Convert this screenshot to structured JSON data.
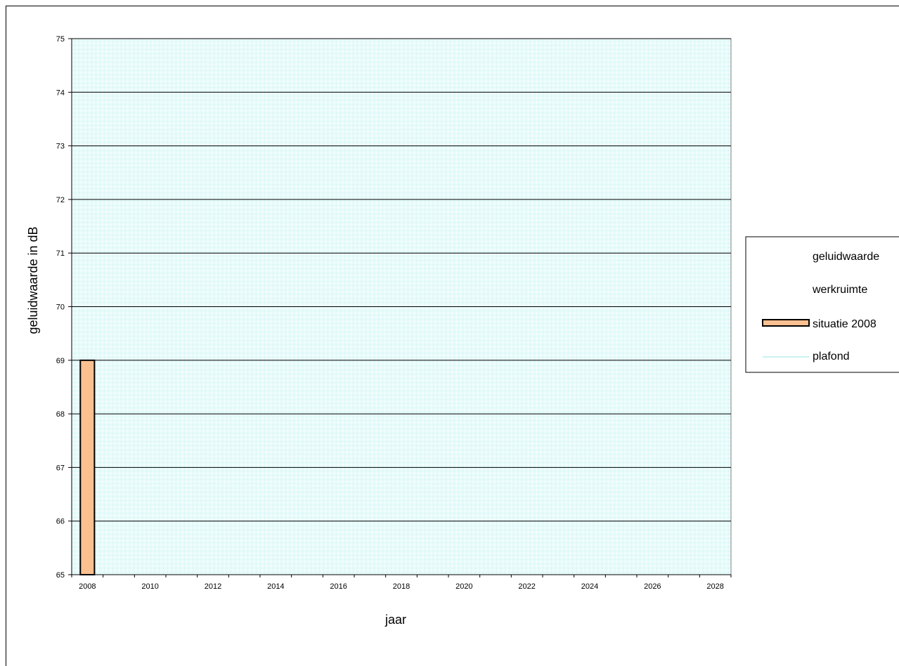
{
  "chart_data": {
    "type": "bar",
    "title": "",
    "xlabel": "jaar",
    "ylabel": "geluidwaarde in dB",
    "xlim": [
      2007.5,
      2028.5
    ],
    "ylim": [
      65,
      75
    ],
    "y_ticks": [
      65,
      66,
      67,
      68,
      69,
      70,
      71,
      72,
      73,
      74,
      75
    ],
    "x_tick_labels": [
      "2008",
      "2010",
      "2012",
      "2014",
      "2016",
      "2018",
      "2020",
      "2022",
      "2024",
      "2026",
      "2028"
    ],
    "grid": true,
    "legend_placement": "right",
    "series": [
      {
        "name": "geluidwaarde",
        "type": "line",
        "values": []
      },
      {
        "name": "werkruimte",
        "type": "area",
        "values": []
      },
      {
        "name": "situatie 2008",
        "type": "bar",
        "x": [
          2008
        ],
        "values": [
          69
        ]
      },
      {
        "name": "plafond",
        "type": "area",
        "x": [
          2007.5,
          2028.5
        ],
        "values": [
          75,
          75
        ]
      }
    ]
  },
  "colors": {
    "plot_background": "#e8fbfb",
    "plot_pattern": "#c9f1f1",
    "bar_fill": "#fac090",
    "gridline": "#000000"
  }
}
